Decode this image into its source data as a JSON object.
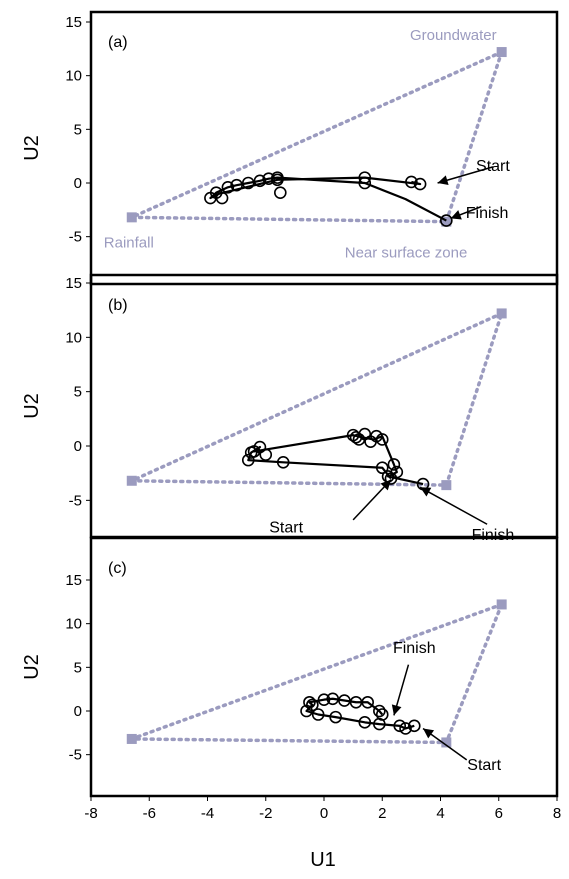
{
  "figure": {
    "xlabel": "U1",
    "ylabel": "U2"
  },
  "style": {
    "end_member_color": "#9b9bbf",
    "trace_color": "#000000"
  },
  "chart_data": [
    {
      "type": "scatter",
      "panel_label": "(a)",
      "xlim": [
        -8,
        8
      ],
      "ylim": [
        -8,
        16
      ],
      "xticks": [
        -8,
        -6,
        -4,
        -2,
        0,
        2,
        4,
        6,
        8
      ],
      "yticks": [
        -5,
        0,
        5,
        10,
        15
      ],
      "ylabel": "U2",
      "end_members": [
        {
          "name": "Groundwater",
          "x": 6.1,
          "y": 12.2
        },
        {
          "name": "Rainfall",
          "x": -6.6,
          "y": -3.2
        },
        {
          "name": "Near surface zone",
          "x": 4.2,
          "y": -3.6
        }
      ],
      "series": [
        {
          "x": [
            3.0,
            3.3,
            1.4,
            -1.6,
            -3.6,
            -3.9,
            -3.7,
            -3.3,
            -3.0,
            -2.6,
            -2.2,
            -1.9,
            -1.6,
            1.4,
            2.8,
            4.2
          ],
          "y": [
            0.1,
            -0.1,
            0.5,
            0.3,
            -1.0,
            -1.4,
            -0.9,
            -0.4,
            -0.2,
            0.0,
            0.2,
            0.4,
            0.5,
            0.0,
            -1.5,
            -3.5
          ],
          "markers": [
            {
              "x": 3.0,
              "y": 0.1
            },
            {
              "x": 3.3,
              "y": -0.1
            },
            {
              "x": 1.4,
              "y": 0.5
            },
            {
              "x": -1.6,
              "y": 0.3
            },
            {
              "x": -1.5,
              "y": -0.9
            },
            {
              "x": -3.9,
              "y": -1.4
            },
            {
              "x": -3.7,
              "y": -0.9
            },
            {
              "x": -3.5,
              "y": -1.4
            },
            {
              "x": -3.3,
              "y": -0.4
            },
            {
              "x": -3.0,
              "y": -0.2
            },
            {
              "x": -2.6,
              "y": 0.0
            },
            {
              "x": -2.2,
              "y": 0.2
            },
            {
              "x": -1.9,
              "y": 0.4
            },
            {
              "x": -1.6,
              "y": 0.5
            },
            {
              "x": 1.4,
              "y": 0.0
            },
            {
              "x": 4.2,
              "y": -3.5
            }
          ]
        }
      ],
      "annotations": [
        {
          "text": "Start",
          "x": 5.8,
          "y": 1.6
        },
        {
          "text": "Finish",
          "x": 5.6,
          "y": -2.8
        }
      ]
    },
    {
      "type": "scatter",
      "panel_label": "(b)",
      "xlim": [
        -8,
        8
      ],
      "ylim": [
        -8,
        16
      ],
      "xticks": [
        -8,
        -6,
        -4,
        -2,
        0,
        2,
        4,
        6,
        8
      ],
      "yticks": [
        -5,
        0,
        5,
        10,
        15
      ],
      "ylabel": "U2",
      "end_members": [
        {
          "x": 6.1,
          "y": 12.2
        },
        {
          "x": -6.6,
          "y": -3.2
        },
        {
          "x": 4.2,
          "y": -3.6
        }
      ],
      "series": [
        {
          "x": [
            2.3,
            2.0,
            -1.4,
            -2.6,
            -2.5,
            -2.2,
            -2.4,
            1.0,
            1.3,
            1.7,
            2.0,
            2.4,
            2.5,
            2.2,
            3.4
          ],
          "y": [
            -3.0,
            -2.0,
            -1.5,
            -1.3,
            -0.6,
            -0.1,
            -0.5,
            1.0,
            0.8,
            0.6,
            0.9,
            -1.7,
            -2.4,
            -2.8,
            -3.5
          ],
          "markers": [
            {
              "x": 2.3,
              "y": -3.0
            },
            {
              "x": 2.0,
              "y": -2.0
            },
            {
              "x": -1.4,
              "y": -1.5
            },
            {
              "x": -2.6,
              "y": -1.3
            },
            {
              "x": -2.5,
              "y": -0.6
            },
            {
              "x": -2.2,
              "y": -0.1
            },
            {
              "x": -2.4,
              "y": -0.5
            },
            {
              "x": -2.0,
              "y": -0.8
            },
            {
              "x": 1.0,
              "y": 1.0
            },
            {
              "x": 1.2,
              "y": 0.6
            },
            {
              "x": 1.4,
              "y": 1.1
            },
            {
              "x": 1.6,
              "y": 0.4
            },
            {
              "x": 1.8,
              "y": 0.9
            },
            {
              "x": 2.0,
              "y": 0.6
            },
            {
              "x": 1.1,
              "y": 0.8
            },
            {
              "x": 2.4,
              "y": -1.7
            },
            {
              "x": 2.5,
              "y": -2.4
            },
            {
              "x": 2.2,
              "y": -2.8
            },
            {
              "x": 3.4,
              "y": -3.5
            }
          ]
        }
      ],
      "annotations": [
        {
          "text": "Start",
          "x": -1.3,
          "y": -7.5
        },
        {
          "text": "Finish",
          "x": 5.8,
          "y": -8.2
        }
      ]
    },
    {
      "type": "scatter",
      "panel_label": "(c)",
      "xlim": [
        -8,
        8
      ],
      "ylim": [
        -8,
        16
      ],
      "xticks": [
        -8,
        -6,
        -4,
        -2,
        0,
        2,
        4,
        6,
        8
      ],
      "yticks": [
        -5,
        0,
        5,
        10,
        15
      ],
      "ylabel": "U2",
      "end_members": [
        {
          "x": 6.1,
          "y": 12.2
        },
        {
          "x": -6.6,
          "y": -3.2
        },
        {
          "x": 4.2,
          "y": -3.6
        }
      ],
      "series": [
        {
          "x": [
            3.1,
            2.8,
            2.6,
            1.9,
            1.4,
            0.4,
            -0.2,
            -0.6,
            -0.4,
            -0.5,
            0.0,
            0.3,
            0.7,
            1.1,
            1.5,
            1.9,
            2.0
          ],
          "y": [
            -1.7,
            -2.0,
            -1.7,
            -1.5,
            -1.3,
            -0.7,
            -0.4,
            0.0,
            0.7,
            1.0,
            1.3,
            1.4,
            1.2,
            1.0,
            1.0,
            0.0,
            -0.4
          ],
          "markers": [
            {
              "x": 3.1,
              "y": -1.7
            },
            {
              "x": 2.8,
              "y": -2.0
            },
            {
              "x": 2.6,
              "y": -1.7
            },
            {
              "x": 1.9,
              "y": -1.5
            },
            {
              "x": 1.4,
              "y": -1.3
            },
            {
              "x": 0.4,
              "y": -0.7
            },
            {
              "x": -0.2,
              "y": -0.4
            },
            {
              "x": -0.6,
              "y": 0.0
            },
            {
              "x": -0.4,
              "y": 0.7
            },
            {
              "x": -0.5,
              "y": 1.0
            },
            {
              "x": 0.0,
              "y": 1.3
            },
            {
              "x": 0.3,
              "y": 1.4
            },
            {
              "x": 0.7,
              "y": 1.2
            },
            {
              "x": 1.1,
              "y": 1.0
            },
            {
              "x": 1.5,
              "y": 1.0
            },
            {
              "x": 1.9,
              "y": 0.0
            },
            {
              "x": 2.0,
              "y": -0.4
            }
          ]
        }
      ],
      "annotations": [
        {
          "text": "Finish",
          "x": 3.1,
          "y": 7.2
        },
        {
          "text": "Start",
          "x": 5.5,
          "y": -6.2
        }
      ]
    }
  ]
}
